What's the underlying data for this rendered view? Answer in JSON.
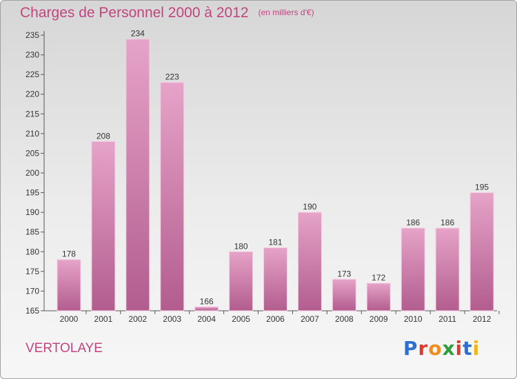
{
  "header": {
    "title": "Charges de Personnel 2000 à 2012",
    "subtitle": "(en milliers d'€)"
  },
  "footer": {
    "commune": "VERTOLAYE",
    "logo_text": "Proxiti",
    "logo_colors": [
      "#2f6fd0",
      "#e23b2e",
      "#f28c1c",
      "#2f9d3a",
      "#e23b2e",
      "#2f6fd0",
      "#f2b51c"
    ]
  },
  "chart_data": {
    "type": "bar",
    "title": "Charges de Personnel 2000 à 2012",
    "subtitle": "(en milliers d'€)",
    "categories": [
      "2000",
      "2001",
      "2002",
      "2003",
      "2004",
      "2005",
      "2006",
      "2007",
      "2008",
      "2009",
      "2010",
      "2011",
      "2012"
    ],
    "values": [
      178,
      208,
      234,
      223,
      166,
      180,
      181,
      190,
      173,
      172,
      186,
      186,
      195
    ],
    "ylim": [
      165,
      235
    ],
    "yticks": [
      165,
      170,
      175,
      180,
      185,
      190,
      195,
      200,
      205,
      210,
      215,
      220,
      225,
      230,
      235
    ],
    "bar_color": "#d987b6",
    "grid": false,
    "legend": "none"
  }
}
